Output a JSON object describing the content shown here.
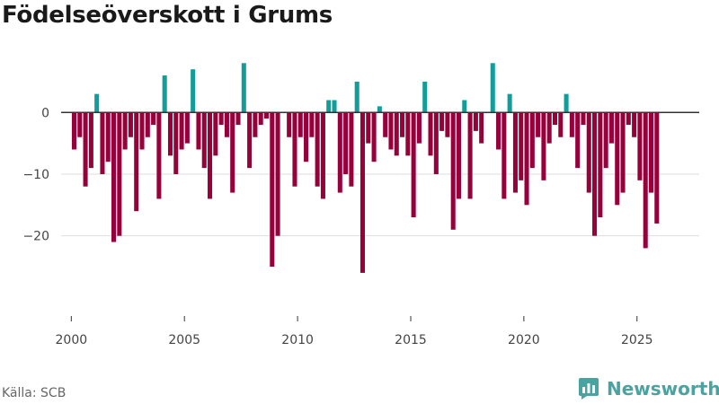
{
  "title": "Födelseöverskott i Grums",
  "source": "Källa: SCB",
  "brand": "Newsworthy",
  "colors": {
    "positive": "#119d99",
    "negative": "#96003b",
    "axis": "#333333",
    "grid": "#dddddd",
    "text": "#444444"
  },
  "chart_data": {
    "type": "bar",
    "title": "Födelseöverskott i Grums",
    "xlabel": "",
    "ylabel": "",
    "ylim": [
      -33,
      9.5
    ],
    "xlim": [
      1999.55,
      2027.75
    ],
    "xticks": [
      2000,
      2005,
      2010,
      2015,
      2020,
      2025
    ],
    "yticks": [
      0,
      -10,
      -20
    ],
    "ytick_labels": [
      "0",
      "−10",
      "−20"
    ],
    "grid": true,
    "bar_width_years": 0.2,
    "x": [
      2000.125,
      2000.375,
      2000.625,
      2000.875,
      2001.125,
      2001.375,
      2001.625,
      2001.875,
      2002.125,
      2002.375,
      2002.625,
      2002.875,
      2003.125,
      2003.375,
      2003.625,
      2003.875,
      2004.125,
      2004.375,
      2004.625,
      2004.875,
      2005.125,
      2005.375,
      2005.625,
      2005.875,
      2006.125,
      2006.375,
      2006.625,
      2006.875,
      2007.125,
      2007.375,
      2007.625,
      2007.875,
      2008.125,
      2008.375,
      2008.625,
      2008.875,
      2009.125,
      2009.375,
      2009.625,
      2009.875,
      2010.125,
      2010.375,
      2010.625,
      2010.875,
      2011.125,
      2011.375,
      2011.625,
      2011.875,
      2012.125,
      2012.375,
      2012.625,
      2012.875,
      2013.125,
      2013.375,
      2013.625,
      2013.875,
      2014.125,
      2014.375,
      2014.625,
      2014.875,
      2015.125,
      2015.375,
      2015.625,
      2015.875,
      2016.125,
      2016.375,
      2016.625,
      2016.875,
      2017.125,
      2017.375,
      2017.625,
      2017.875,
      2018.125,
      2018.375,
      2018.625,
      2018.875,
      2019.125,
      2019.375,
      2019.625,
      2019.875,
      2020.125,
      2020.375,
      2020.625,
      2020.875,
      2021.125,
      2021.375,
      2021.625,
      2021.875,
      2022.125,
      2022.375,
      2022.625,
      2022.875,
      2023.125,
      2023.375,
      2023.625,
      2023.875,
      2024.125,
      2024.375,
      2024.625,
      2024.875,
      2025.125,
      2025.375,
      2025.625,
      2025.875
    ],
    "values": [
      -6,
      -4,
      -12,
      -9,
      3,
      -10,
      -8,
      -21,
      -20,
      -6,
      -4,
      -16,
      -6,
      -4,
      -2,
      -14,
      6,
      -7,
      -10,
      -6,
      -5,
      7,
      -6,
      -9,
      -14,
      -7,
      -2,
      -4,
      -13,
      -2,
      8,
      -9,
      -4,
      -2,
      -1,
      -25,
      -20,
      0,
      -4,
      -12,
      -4,
      -8,
      -4,
      -12,
      -14,
      2,
      2,
      -13,
      -10,
      -12,
      5,
      -26,
      -5,
      -8,
      1,
      -4,
      -6,
      -7,
      -4,
      -7,
      -17,
      -5,
      5,
      -7,
      -10,
      -3,
      -4,
      -19,
      -14,
      2,
      -14,
      -3,
      -5,
      0,
      8,
      -6,
      -14,
      3,
      -13,
      -11,
      -15,
      -9,
      -4,
      -11,
      -5,
      -2,
      -4,
      3,
      -4,
      -9,
      -2,
      -13,
      -20,
      -17,
      -9,
      -5,
      -15,
      -13,
      -2,
      -4,
      -11,
      -22,
      -13,
      -18
    ]
  }
}
